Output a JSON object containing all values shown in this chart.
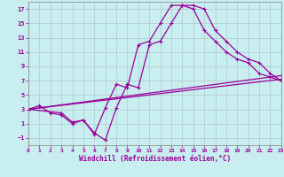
{
  "xlabel": "Windchill (Refroidissement éolien,°C)",
  "bg_color": "#c8eef0",
  "line_color": "#990099",
  "grid_color": "#b0c8cc",
  "xlim": [
    0,
    23
  ],
  "ylim": [
    -2,
    18
  ],
  "xticks": [
    0,
    1,
    2,
    3,
    4,
    5,
    6,
    7,
    8,
    9,
    10,
    11,
    12,
    13,
    14,
    15,
    16,
    17,
    18,
    19,
    20,
    21,
    22,
    23
  ],
  "yticks": [
    -1,
    1,
    3,
    5,
    7,
    9,
    11,
    13,
    15,
    17
  ],
  "line1_x": [
    0,
    1,
    2,
    3,
    4,
    5,
    6,
    7,
    8,
    9,
    10,
    11,
    12,
    13,
    14,
    15,
    16,
    17,
    18,
    19,
    20,
    21,
    22,
    23
  ],
  "line1_y": [
    3,
    3.5,
    2.5,
    2.2,
    1.0,
    1.5,
    -0.5,
    3.2,
    6.5,
    6.0,
    12.0,
    12.5,
    15.0,
    17.5,
    17.5,
    17.0,
    14.0,
    12.5,
    11.0,
    10.0,
    9.5,
    8.0,
    7.5,
    7.0
  ],
  "line2_x": [
    0,
    3,
    4,
    5,
    6,
    7,
    8,
    9,
    10,
    11,
    12,
    13,
    14,
    15,
    16,
    17,
    18,
    19,
    20,
    21,
    22,
    23
  ],
  "line2_y": [
    3,
    2.5,
    1.2,
    1.5,
    -0.3,
    -1.3,
    3.2,
    6.5,
    6.0,
    12.0,
    12.5,
    15.0,
    17.5,
    17.5,
    17.0,
    14.0,
    12.5,
    11.0,
    10.0,
    9.5,
    8.0,
    7.0
  ],
  "line3_x": [
    0,
    23
  ],
  "line3_y": [
    3,
    7.2
  ],
  "line4_x": [
    0,
    23
  ],
  "line4_y": [
    3,
    7.7
  ]
}
